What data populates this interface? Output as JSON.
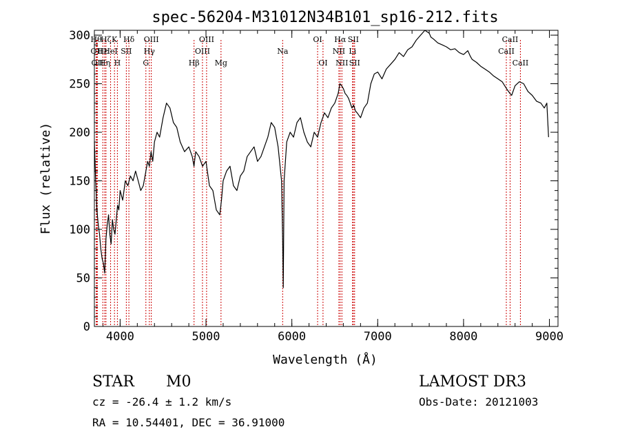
{
  "chart_data": {
    "type": "line",
    "title": "spec-56204-M31012N34B101_sp16-212.fits",
    "xlabel": "Wavelength (Å)",
    "ylabel": "Flux (relative)",
    "xlim": [
      3700,
      9100
    ],
    "ylim": [
      0,
      305
    ],
    "x_ticks": [
      4000,
      5000,
      6000,
      7000,
      8000,
      9000
    ],
    "y_ticks": [
      0,
      50,
      100,
      150,
      200,
      250,
      300
    ],
    "x_minor_step": 200,
    "y_minor_step": 10,
    "grid": false,
    "line_color": "#000000",
    "marker_color": "#cc0000",
    "series": [
      {
        "x": [
          3700,
          3715,
          3730,
          3745,
          3760,
          3775,
          3790,
          3805,
          3820,
          3835,
          3850,
          3865,
          3880,
          3895,
          3910,
          3925,
          3940,
          3955,
          3970,
          3985,
          4000,
          4030,
          4060,
          4090,
          4120,
          4150,
          4180,
          4210,
          4240,
          4270,
          4300,
          4320,
          4340,
          4360,
          4380,
          4400,
          4430,
          4460,
          4500,
          4540,
          4580,
          4620,
          4660,
          4700,
          4750,
          4800,
          4840,
          4860,
          4880,
          4920,
          4960,
          5000,
          5040,
          5080,
          5120,
          5160,
          5180,
          5200,
          5240,
          5280,
          5320,
          5360,
          5400,
          5440,
          5480,
          5520,
          5560,
          5600,
          5640,
          5680,
          5720,
          5760,
          5800,
          5840,
          5880,
          5893,
          5900,
          5910,
          5940,
          5980,
          6020,
          6060,
          6100,
          6140,
          6180,
          6220,
          6260,
          6300,
          6340,
          6380,
          6420,
          6460,
          6500,
          6540,
          6560,
          6580,
          6600,
          6620,
          6640,
          6660,
          6680,
          6700,
          6720,
          6740,
          6760,
          6800,
          6840,
          6880,
          6920,
          6960,
          7000,
          7050,
          7100,
          7150,
          7200,
          7250,
          7300,
          7350,
          7400,
          7450,
          7500,
          7550,
          7600,
          7620,
          7650,
          7700,
          7750,
          7800,
          7850,
          7900,
          7950,
          8000,
          8050,
          8080,
          8100,
          8150,
          8200,
          8250,
          8300,
          8350,
          8400,
          8450,
          8500,
          8540,
          8560,
          8600,
          8650,
          8700,
          8750,
          8800,
          8850,
          8900,
          8940,
          8970,
          8990
        ],
        "y": [
          190,
          150,
          120,
          105,
          95,
          80,
          70,
          65,
          55,
          90,
          105,
          115,
          95,
          85,
          110,
          100,
          95,
          110,
          125,
          120,
          140,
          130,
          150,
          145,
          155,
          150,
          160,
          150,
          140,
          145,
          160,
          170,
          165,
          180,
          170,
          190,
          200,
          195,
          215,
          230,
          225,
          210,
          205,
          190,
          180,
          185,
          175,
          165,
          180,
          175,
          165,
          170,
          145,
          140,
          120,
          115,
          130,
          150,
          160,
          165,
          145,
          140,
          155,
          160,
          175,
          180,
          185,
          170,
          175,
          185,
          195,
          210,
          205,
          185,
          150,
          90,
          40,
          150,
          190,
          200,
          195,
          210,
          215,
          200,
          190,
          185,
          200,
          195,
          210,
          220,
          215,
          225,
          230,
          240,
          250,
          248,
          245,
          240,
          238,
          235,
          230,
          225,
          228,
          222,
          220,
          215,
          225,
          230,
          250,
          260,
          262,
          255,
          265,
          270,
          275,
          282,
          278,
          285,
          288,
          295,
          300,
          305,
          302,
          298,
          296,
          292,
          290,
          288,
          285,
          286,
          282,
          280,
          284,
          278,
          275,
          272,
          268,
          265,
          262,
          258,
          255,
          252,
          245,
          240,
          238,
          248,
          252,
          250,
          242,
          238,
          232,
          230,
          225,
          230,
          195
        ]
      }
    ],
    "lines": [
      {
        "x": 3721,
        "labels": [
          "Hθ"
        ],
        "rows": [
          0
        ]
      },
      {
        "x": 3727,
        "labels": [
          "OII"
        ],
        "rows": [
          1
        ]
      },
      {
        "x": 3735,
        "labels": [
          "OII"
        ],
        "rows": [
          2
        ]
      },
      {
        "x": 3798,
        "labels": [
          "Hε"
        ],
        "rows": [
          1
        ]
      },
      {
        "x": 3820,
        "labels": [
          "Hη"
        ],
        "rows": [
          2
        ]
      },
      {
        "x": 3835,
        "labels": [
          "Hζ"
        ],
        "rows": [
          0
        ]
      },
      {
        "x": 3889,
        "labels": [
          "HeI"
        ],
        "rows": [
          1
        ]
      },
      {
        "x": 3934,
        "labels": [
          "K"
        ],
        "rows": [
          0
        ]
      },
      {
        "x": 3968,
        "labels": [
          "H"
        ],
        "rows": [
          2
        ]
      },
      {
        "x": 4072,
        "labels": [
          "SII"
        ],
        "rows": [
          1
        ]
      },
      {
        "x": 4102,
        "labels": [
          "Hδ"
        ],
        "rows": [
          0
        ]
      },
      {
        "x": 4300,
        "labels": [
          "G"
        ],
        "rows": [
          2
        ]
      },
      {
        "x": 4340,
        "labels": [
          "Hγ"
        ],
        "rows": [
          1
        ]
      },
      {
        "x": 4363,
        "labels": [
          "OIII"
        ],
        "rows": [
          0
        ]
      },
      {
        "x": 4861,
        "labels": [
          "Hβ"
        ],
        "rows": [
          2
        ]
      },
      {
        "x": 4959,
        "labels": [
          "OIII"
        ],
        "rows": [
          1
        ]
      },
      {
        "x": 5007,
        "labels": [
          "OIII"
        ],
        "rows": [
          0
        ]
      },
      {
        "x": 5175,
        "labels": [
          "Mg"
        ],
        "rows": [
          2
        ]
      },
      {
        "x": 5893,
        "labels": [
          "Na"
        ],
        "rows": [
          1
        ]
      },
      {
        "x": 6300,
        "labels": [
          "OI"
        ],
        "rows": [
          0
        ]
      },
      {
        "x": 6363,
        "labels": [
          "OI"
        ],
        "rows": [
          2
        ]
      },
      {
        "x": 6548,
        "labels": [
          "NII"
        ],
        "rows": [
          1
        ]
      },
      {
        "x": 6563,
        "labels": [
          "Hα"
        ],
        "rows": [
          0
        ]
      },
      {
        "x": 6583,
        "labels": [
          "NII"
        ],
        "rows": [
          2
        ]
      },
      {
        "x": 6707,
        "labels": [
          "Li"
        ],
        "rows": [
          1
        ]
      },
      {
        "x": 6716,
        "labels": [
          "SII"
        ],
        "rows": [
          0
        ]
      },
      {
        "x": 6731,
        "labels": [
          "SII"
        ],
        "rows": [
          2
        ]
      },
      {
        "x": 8498,
        "labels": [
          "CaII"
        ],
        "rows": [
          1
        ]
      },
      {
        "x": 8542,
        "labels": [
          "CaII"
        ],
        "rows": [
          0
        ]
      },
      {
        "x": 8662,
        "labels": [
          "CaII"
        ],
        "rows": [
          2
        ]
      }
    ]
  },
  "footer": {
    "class_label": "STAR",
    "subclass_label": "M0",
    "redshift_text": "cz = -26.4 ± 1.2 km/s",
    "coords_text": "RA =  10.54401, DEC =  36.91000",
    "survey_label": "LAMOST DR3",
    "obsdate_text": "Obs-Date: 20121003"
  }
}
